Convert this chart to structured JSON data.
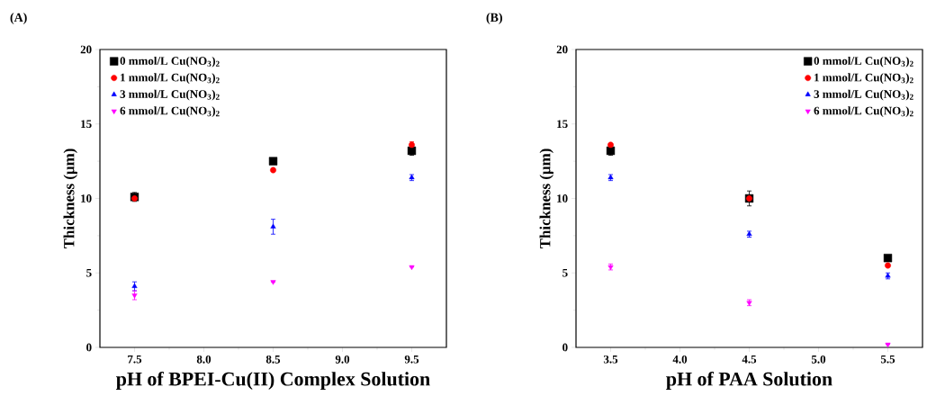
{
  "chart_data": [
    {
      "type": "scatter",
      "title": "(A)",
      "xlabel": "pH of BPEI-Cu(II) Complex Solution",
      "ylabel": "Thickness (μm)",
      "x": [
        7.5,
        8.5,
        9.5
      ],
      "xlim": [
        7.25,
        9.75
      ],
      "xticks": [
        {
          "value": 7.5,
          "label": "7.5"
        },
        {
          "value": 8.0,
          "label": "8.0"
        },
        {
          "value": 8.5,
          "label": "8.5"
        },
        {
          "value": 9.0,
          "label": "9.0"
        },
        {
          "value": 9.5,
          "label": "9.5"
        }
      ],
      "ylim": [
        0,
        20
      ],
      "yticks": [
        0,
        5,
        10,
        15,
        20
      ],
      "legend": "top left",
      "grid": false,
      "series": [
        {
          "name": "0 mmol/L Cu(NO$_{3}$)$_{2}$",
          "color": "#000000",
          "marker": "square",
          "values": [
            10.1,
            12.5,
            13.2
          ],
          "errors": [
            0.3,
            null,
            0.3
          ]
        },
        {
          "name": "1 mmol/L Cu(NO$_{3}$)$_{2}$",
          "color": "#ff0000",
          "marker": "circle",
          "values": [
            10.0,
            11.9,
            13.6
          ],
          "errors": [
            null,
            null,
            0.2
          ]
        },
        {
          "name": "3 mmol/L Cu(NO$_{3}$)$_{2}$",
          "color": "#0000ff",
          "marker": "triangle",
          "values": [
            4.1,
            8.1,
            11.4
          ],
          "errors": [
            0.3,
            0.5,
            0.2
          ]
        },
        {
          "name": "6 mmol/L Cu(NO$_{3}$)$_{2}$",
          "color": "#ff00ff",
          "marker": "triangle_down",
          "values": [
            3.5,
            4.4,
            5.4
          ],
          "errors": [
            0.3,
            null,
            null
          ]
        }
      ]
    },
    {
      "type": "scatter",
      "title": "(B)",
      "xlabel": "pH of PAA Solution",
      "ylabel": "Thickness (μm)",
      "x": [
        3.5,
        4.5,
        5.5
      ],
      "xlim": [
        3.25,
        5.75
      ],
      "xticks": [
        {
          "value": 3.5,
          "label": "3.5"
        },
        {
          "value": 4.0,
          "label": "4.0"
        },
        {
          "value": 4.5,
          "label": "4.5"
        },
        {
          "value": 5.0,
          "label": "5.0"
        },
        {
          "value": 5.5,
          "label": "5.5"
        }
      ],
      "ylim": [
        0,
        20
      ],
      "yticks": [
        0,
        5,
        10,
        15,
        20
      ],
      "legend": "top right",
      "grid": false,
      "series": [
        {
          "name": "0 mmol/L Cu(NO$_{3}$)$_{2}$",
          "color": "#000000",
          "marker": "square",
          "values": [
            13.2,
            10.0,
            6.0
          ],
          "errors": [
            0.3,
            0.5,
            null
          ]
        },
        {
          "name": "1 mmol/L Cu(NO$_{3}$)$_{2}$",
          "color": "#ff0000",
          "marker": "circle",
          "values": [
            13.6,
            10.0,
            5.5
          ],
          "errors": [
            null,
            null,
            null
          ]
        },
        {
          "name": "3 mmol/L Cu(NO$_{3}$)$_{2}$",
          "color": "#0000ff",
          "marker": "triangle",
          "values": [
            11.4,
            7.6,
            4.8
          ],
          "errors": [
            0.2,
            0.2,
            0.2
          ]
        },
        {
          "name": "6 mmol/L Cu(NO$_{3}$)$_{2}$",
          "color": "#ff00ff",
          "marker": "triangle_down",
          "values": [
            5.4,
            3.0,
            0.2
          ],
          "errors": [
            0.2,
            0.2,
            null
          ]
        }
      ]
    }
  ]
}
